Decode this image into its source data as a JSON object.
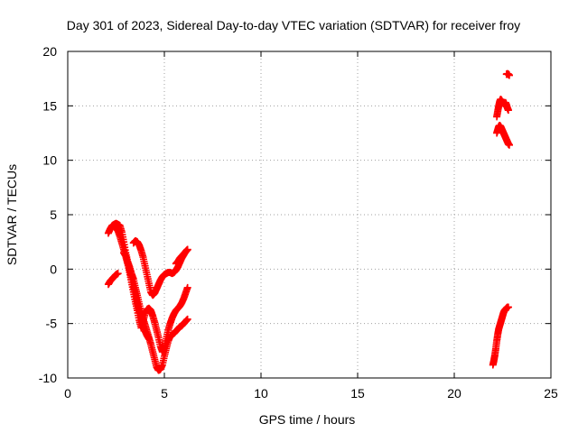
{
  "chart_data": {
    "type": "scatter",
    "title": "Day 301 of 2023, Sidereal Day-to-day VTEC variation (SDTVAR) for receiver froy",
    "xlabel": "GPS time / hours",
    "ylabel": "SDTVAR / TECUs",
    "xlim": [
      0,
      25
    ],
    "ylim": [
      -10,
      20
    ],
    "xticks": [
      "0",
      "5",
      "10",
      "15",
      "20",
      "25"
    ],
    "yticks": [
      "-10",
      "-5",
      "0",
      "5",
      "10",
      "15",
      "20"
    ],
    "grid": true,
    "marker_color": "#ff0000",
    "marker": "plus",
    "segments": [
      {
        "x": [
          2.1,
          2.2,
          2.3,
          2.4,
          2.5,
          2.6,
          2.7,
          2.8,
          2.9,
          3.0,
          3.1,
          3.2,
          3.3,
          3.4,
          3.5,
          3.6,
          3.7,
          3.8,
          3.9,
          4.0,
          4.1,
          4.2,
          4.3,
          4.4,
          4.5,
          4.6,
          4.7,
          4.8,
          4.9,
          5.0,
          5.1,
          5.2,
          5.3,
          5.4,
          5.5,
          5.6,
          5.7,
          5.8,
          5.9,
          6.0,
          6.1,
          6.2
        ],
        "y": [
          3.3,
          3.7,
          4.0,
          4.1,
          4.2,
          4.1,
          4.0,
          3.4,
          2.5,
          1.5,
          0.7,
          0.2,
          -0.4,
          -0.9,
          -1.7,
          -2.4,
          -3.2,
          -4.0,
          -4.6,
          -5.1,
          -5.7,
          -6.3,
          -6.9,
          -7.6,
          -8.3,
          -9.0,
          -9.3,
          -9.2,
          -8.8,
          -8.0,
          -7.3,
          -6.6,
          -6.2,
          -6.0,
          -5.9,
          -5.7,
          -5.5,
          -5.3,
          -5.2,
          -5.0,
          -4.8,
          -4.6
        ]
      },
      {
        "x": [
          2.1,
          2.2,
          2.3,
          2.4,
          2.5,
          2.6
        ],
        "y": [
          -1.4,
          -1.1,
          -0.9,
          -0.7,
          -0.5,
          -0.4
        ]
      },
      {
        "x": [
          2.5,
          2.6,
          2.7,
          2.8,
          2.9,
          3.0,
          3.1,
          3.2,
          3.3,
          3.4,
          3.5,
          3.6,
          3.7,
          3.8,
          3.9,
          4.0,
          4.1,
          4.2,
          4.3,
          4.4,
          4.5,
          4.6,
          4.7,
          4.8,
          4.9,
          5.0,
          5.1,
          5.2,
          5.3,
          5.4,
          5.5,
          5.6,
          5.7,
          5.8,
          5.9,
          6.0,
          6.1,
          6.2
        ],
        "y": [
          3.8,
          3.5,
          3.0,
          2.4,
          1.8,
          1.2,
          0.5,
          -0.3,
          -1.2,
          -2.1,
          -3.0,
          -3.8,
          -4.7,
          -5.4,
          -4.8,
          -4.1,
          -3.7,
          -3.6,
          -3.8,
          -4.3,
          -4.9,
          -5.6,
          -6.3,
          -7.1,
          -7.6,
          -7.2,
          -6.4,
          -5.6,
          -5.0,
          -4.5,
          -4.1,
          -3.8,
          -3.6,
          -3.4,
          -3.1,
          -2.7,
          -2.2,
          -1.7
        ]
      },
      {
        "x": [
          2.9,
          3.0,
          3.1,
          3.2,
          3.3,
          3.4,
          3.5,
          3.6,
          3.7,
          3.8,
          3.9,
          4.0,
          4.1,
          4.2
        ],
        "y": [
          1.5,
          1.2,
          0.6,
          0.0,
          -0.8,
          -1.6,
          -2.3,
          -3.1,
          -3.9,
          -4.6,
          -5.2,
          -5.7,
          -6.1,
          -6.4
        ]
      },
      {
        "x": [
          3.4,
          3.5,
          3.6,
          3.7,
          3.8,
          3.9,
          4.0,
          4.1,
          4.2,
          4.3,
          4.4,
          4.5,
          4.6,
          4.7,
          4.8,
          4.9,
          5.0,
          5.1,
          5.2,
          5.3,
          5.4,
          5.5,
          5.6,
          5.7,
          5.8,
          5.9,
          6.0,
          6.1,
          6.2
        ],
        "y": [
          2.4,
          2.6,
          2.5,
          2.2,
          1.7,
          1.1,
          0.3,
          -0.5,
          -1.3,
          -2.1,
          -2.4,
          -2.2,
          -1.8,
          -1.4,
          -1.0,
          -0.7,
          -0.5,
          -0.4,
          -0.3,
          -0.3,
          -0.4,
          -0.3,
          -0.1,
          0.2,
          0.6,
          1.0,
          1.3,
          1.6,
          1.8
        ]
      },
      {
        "x": [
          5.6,
          5.7,
          5.8,
          5.9,
          6.0,
          6.1,
          6.2
        ],
        "y": [
          0.5,
          0.7,
          1.0,
          1.2,
          1.4,
          1.6,
          1.8
        ]
      },
      {
        "x": [
          22.0,
          22.05,
          22.1,
          22.15,
          22.2,
          22.25,
          22.3,
          22.35,
          22.4,
          22.45,
          22.5,
          22.55,
          22.6,
          22.65,
          22.7,
          22.75,
          22.8
        ],
        "y": [
          -8.8,
          -8.4,
          -7.9,
          -7.3,
          -6.6,
          -6.0,
          -5.5,
          -5.2,
          -4.9,
          -4.6,
          -4.3,
          -4.0,
          -3.8,
          -3.7,
          -3.6,
          -3.5,
          -3.5
        ]
      },
      {
        "x": [
          22.2,
          22.25,
          22.3,
          22.35,
          22.4,
          22.45,
          22.5,
          22.55,
          22.6,
          22.65,
          22.7,
          22.75,
          22.8,
          22.85
        ],
        "y": [
          12.5,
          12.8,
          13.1,
          13.2,
          13.1,
          12.9,
          12.7,
          12.5,
          12.3,
          12.1,
          11.9,
          11.7,
          11.5,
          11.4
        ]
      },
      {
        "x": [
          22.2,
          22.25,
          22.3,
          22.35,
          22.4,
          22.45,
          22.5,
          22.55,
          22.6,
          22.65,
          22.7,
          22.75,
          22.8
        ],
        "y": [
          14.0,
          14.5,
          15.0,
          15.4,
          15.6,
          15.5,
          15.3,
          15.2,
          15.2,
          15.3,
          15.1,
          14.8,
          14.6
        ]
      },
      {
        "x": [
          22.7,
          22.75,
          22.8,
          22.85
        ],
        "y": [
          17.9,
          17.95,
          17.9,
          17.8
        ]
      }
    ]
  }
}
